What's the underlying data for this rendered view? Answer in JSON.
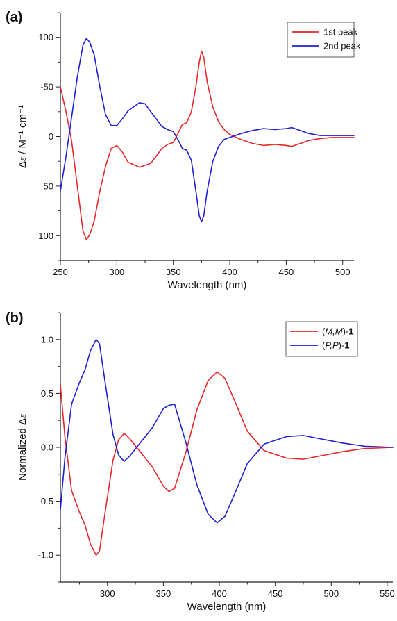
{
  "chart_data": [
    {
      "type": "line",
      "panel_label": "(a)",
      "xlabel": "Wavelength (nm)",
      "ylabel": "Δε / M⁻¹ cm⁻¹",
      "xlim": [
        250,
        510
      ],
      "ylim": [
        125,
        -125
      ],
      "y_axis_inverted": true,
      "xticks": [
        250,
        300,
        350,
        400,
        450,
        500
      ],
      "yticks": [
        -100,
        -50,
        0,
        50,
        100
      ],
      "yticklabels": [
        "-100",
        "-50",
        "0",
        "50",
        "100"
      ],
      "legend_position": "top-right",
      "series": [
        {
          "name": "1st peak",
          "color": "#e8262a",
          "points": [
            [
              250,
              -50
            ],
            [
              255,
              -25
            ],
            [
              260,
              5
            ],
            [
              265,
              50
            ],
            [
              270,
              95
            ],
            [
              273,
              104
            ],
            [
              276,
              99
            ],
            [
              280,
              85
            ],
            [
              285,
              55
            ],
            [
              290,
              30
            ],
            [
              295,
              12
            ],
            [
              300,
              9
            ],
            [
              305,
              16
            ],
            [
              310,
              26
            ],
            [
              320,
              31
            ],
            [
              330,
              27
            ],
            [
              340,
              12
            ],
            [
              345,
              8
            ],
            [
              350,
              6
            ],
            [
              355,
              -5
            ],
            [
              358,
              -12
            ],
            [
              362,
              -14
            ],
            [
              366,
              -25
            ],
            [
              370,
              -50
            ],
            [
              373,
              -75
            ],
            [
              375,
              -86
            ],
            [
              377,
              -80
            ],
            [
              380,
              -55
            ],
            [
              385,
              -30
            ],
            [
              390,
              -15
            ],
            [
              395,
              -7
            ],
            [
              400,
              -2
            ],
            [
              410,
              3
            ],
            [
              420,
              7
            ],
            [
              430,
              9
            ],
            [
              440,
              8
            ],
            [
              450,
              9
            ],
            [
              455,
              10
            ],
            [
              460,
              8
            ],
            [
              470,
              4
            ],
            [
              480,
              2
            ],
            [
              490,
              1
            ],
            [
              500,
              1
            ],
            [
              510,
              1
            ]
          ]
        },
        {
          "name": "2nd peak",
          "color": "#1f1fd6",
          "points": [
            [
              250,
              55
            ],
            [
              255,
              20
            ],
            [
              260,
              -20
            ],
            [
              265,
              -60
            ],
            [
              270,
              -92
            ],
            [
              273,
              -99
            ],
            [
              276,
              -95
            ],
            [
              280,
              -82
            ],
            [
              285,
              -50
            ],
            [
              290,
              -22
            ],
            [
              295,
              -11
            ],
            [
              300,
              -11
            ],
            [
              305,
              -18
            ],
            [
              310,
              -26
            ],
            [
              320,
              -34
            ],
            [
              325,
              -33
            ],
            [
              330,
              -25
            ],
            [
              340,
              -10
            ],
            [
              345,
              -7
            ],
            [
              350,
              -5
            ],
            [
              355,
              5
            ],
            [
              358,
              12
            ],
            [
              362,
              14
            ],
            [
              366,
              24
            ],
            [
              370,
              55
            ],
            [
              373,
              80
            ],
            [
              375,
              86
            ],
            [
              377,
              80
            ],
            [
              380,
              55
            ],
            [
              385,
              25
            ],
            [
              390,
              10
            ],
            [
              395,
              3
            ],
            [
              400,
              1
            ],
            [
              410,
              -3
            ],
            [
              420,
              -6
            ],
            [
              430,
              -8
            ],
            [
              440,
              -7
            ],
            [
              450,
              -8
            ],
            [
              455,
              -9
            ],
            [
              460,
              -7
            ],
            [
              470,
              -3
            ],
            [
              480,
              -1
            ],
            [
              490,
              -1
            ],
            [
              500,
              -1
            ],
            [
              510,
              -1
            ]
          ]
        }
      ]
    },
    {
      "type": "line",
      "panel_label": "(b)",
      "xlabel": "Wavelength (nm)",
      "ylabel": "Normalized Δε",
      "xlim": [
        258,
        555
      ],
      "ylim": [
        -1.25,
        1.25
      ],
      "y_axis_inverted": false,
      "xticks": [
        300,
        350,
        400,
        450,
        500,
        550
      ],
      "yticks": [
        1.0,
        0.5,
        0.0,
        -0.5,
        -1.0
      ],
      "yticklabels": [
        "1.0",
        "0.5",
        "0.0",
        "-0.5",
        "-1.0"
      ],
      "legend_position": "top-right",
      "series": [
        {
          "name": "(M,M)-1",
          "color": "#e8262a",
          "points": [
            [
              258,
              0.58
            ],
            [
              262,
              0.1
            ],
            [
              268,
              -0.4
            ],
            [
              275,
              -0.6
            ],
            [
              280,
              -0.72
            ],
            [
              285,
              -0.9
            ],
            [
              290,
              -1.0
            ],
            [
              293,
              -0.96
            ],
            [
              298,
              -0.6
            ],
            [
              305,
              -0.12
            ],
            [
              310,
              0.07
            ],
            [
              315,
              0.13
            ],
            [
              320,
              0.08
            ],
            [
              330,
              -0.05
            ],
            [
              340,
              -0.18
            ],
            [
              350,
              -0.36
            ],
            [
              355,
              -0.41
            ],
            [
              360,
              -0.38
            ],
            [
              370,
              -0.05
            ],
            [
              380,
              0.35
            ],
            [
              390,
              0.62
            ],
            [
              398,
              0.7
            ],
            [
              405,
              0.64
            ],
            [
              415,
              0.4
            ],
            [
              425,
              0.15
            ],
            [
              440,
              -0.03
            ],
            [
              460,
              -0.1
            ],
            [
              475,
              -0.11
            ],
            [
              490,
              -0.08
            ],
            [
              510,
              -0.04
            ],
            [
              530,
              -0.01
            ],
            [
              555,
              0.0
            ]
          ]
        },
        {
          "name": "(P,P)-1",
          "color": "#1f1fd6",
          "points": [
            [
              258,
              -0.58
            ],
            [
              262,
              -0.1
            ],
            [
              268,
              0.4
            ],
            [
              275,
              0.6
            ],
            [
              280,
              0.72
            ],
            [
              285,
              0.9
            ],
            [
              290,
              1.0
            ],
            [
              293,
              0.96
            ],
            [
              298,
              0.6
            ],
            [
              305,
              0.12
            ],
            [
              310,
              -0.07
            ],
            [
              315,
              -0.13
            ],
            [
              320,
              -0.08
            ],
            [
              330,
              0.05
            ],
            [
              340,
              0.18
            ],
            [
              350,
              0.36
            ],
            [
              355,
              0.39
            ],
            [
              360,
              0.4
            ],
            [
              370,
              0.05
            ],
            [
              380,
              -0.35
            ],
            [
              390,
              -0.62
            ],
            [
              398,
              -0.7
            ],
            [
              405,
              -0.64
            ],
            [
              415,
              -0.4
            ],
            [
              425,
              -0.15
            ],
            [
              440,
              0.03
            ],
            [
              460,
              0.1
            ],
            [
              475,
              0.11
            ],
            [
              490,
              0.08
            ],
            [
              510,
              0.04
            ],
            [
              530,
              0.01
            ],
            [
              555,
              0.0
            ]
          ]
        }
      ]
    }
  ]
}
